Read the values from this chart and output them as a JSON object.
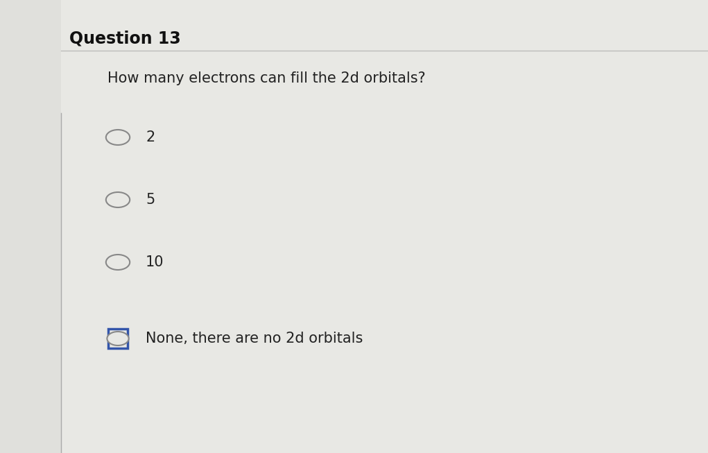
{
  "title": "Question 13",
  "question": "How many electrons can fill the 2d orbitals?",
  "options": [
    "2",
    "5",
    "10",
    "None, there are no 2d orbitals"
  ],
  "selected_index": 3,
  "background_color": "#d8d8d5",
  "card_color": "#e8e8e4",
  "title_fontsize": 17,
  "question_fontsize": 15,
  "option_fontsize": 15,
  "title_color": "#111111",
  "question_color": "#222222",
  "option_color": "#222222",
  "radio_color": "#888888",
  "selected_border_color": "#3355aa",
  "divider_color": "#bbbbbb",
  "left_panel_color": "#e0e0dc",
  "separator_color": "#aaaaaa"
}
